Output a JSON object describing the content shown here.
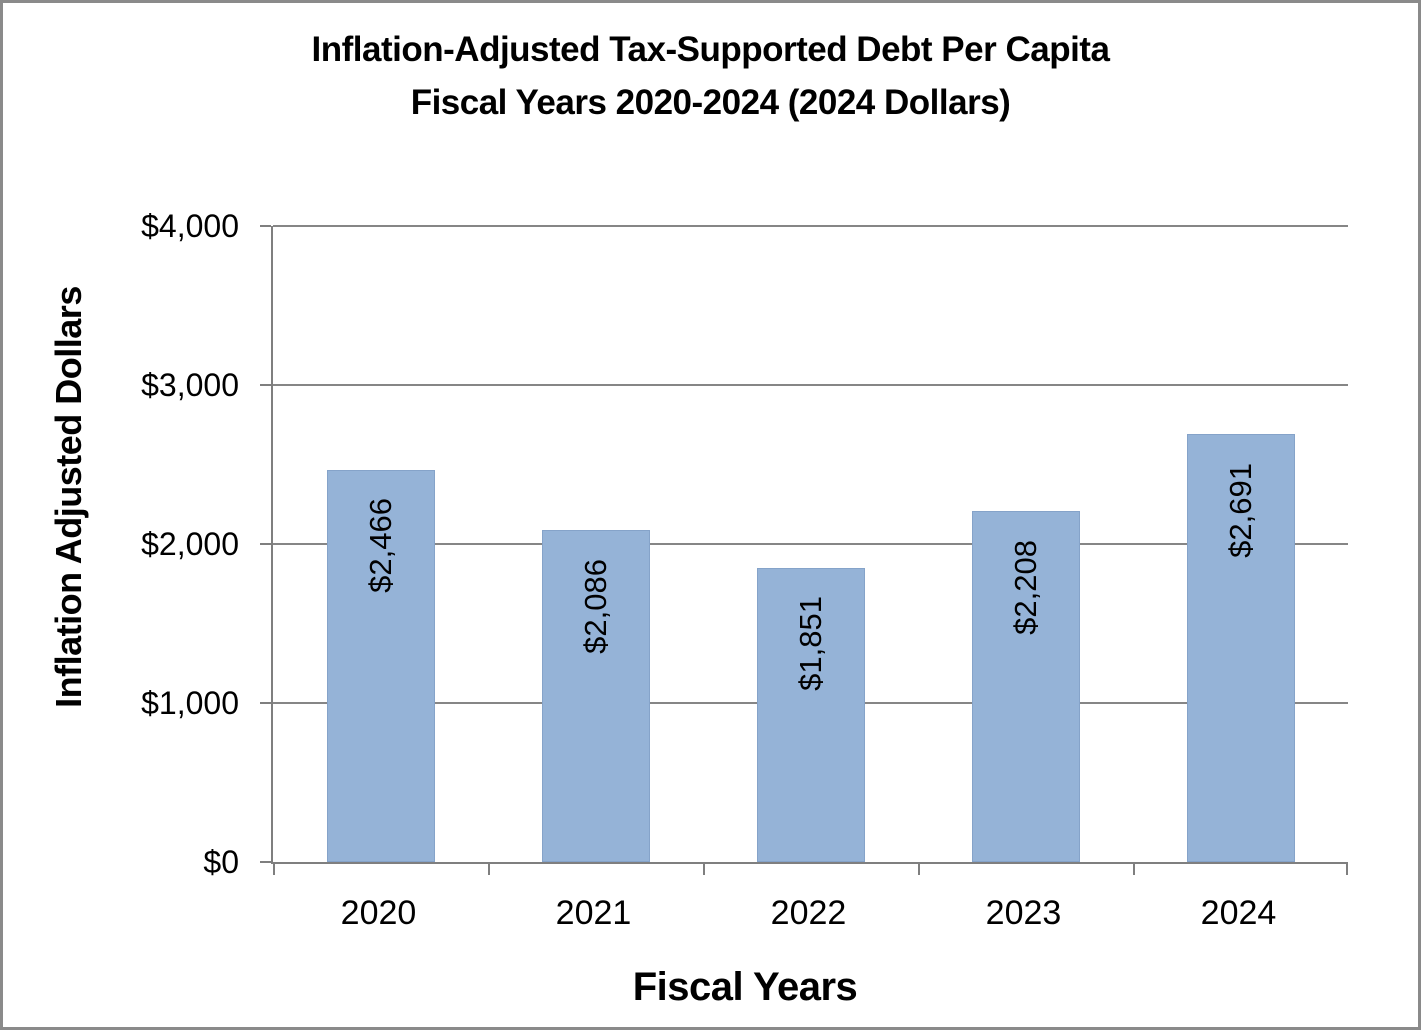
{
  "window": {
    "background": "#FFFFFF",
    "frame_border_color": "#8A8A8A"
  },
  "chart_data": {
    "type": "bar",
    "title_lines": [
      "Inflation-Adjusted Tax-Supported Debt Per Capita",
      "Fiscal Years 2020-2024 (2024 Dollars)"
    ],
    "xlabel": "Fiscal Years",
    "ylabel": "Inflation Adjusted Dollars",
    "categories": [
      "2020",
      "2021",
      "2022",
      "2023",
      "2024"
    ],
    "values": [
      2466,
      2086,
      1851,
      2208,
      2691
    ],
    "data_labels": [
      "$2,466",
      "$2,086",
      "$1,851",
      "$2,208",
      "$2,691"
    ],
    "data_label_rotation_degrees": -90,
    "data_label_position": "inside-end",
    "ylim": [
      0,
      4000
    ],
    "yticks": [
      0,
      1000,
      2000,
      3000,
      4000
    ],
    "ytick_labels": [
      "$0",
      "$1,000",
      "$2,000",
      "$3,000",
      "$4,000"
    ],
    "grid": "horizontal",
    "legend": "none",
    "colors": {
      "bar_fill": "#95B3D7",
      "bar_border": "#85A3C9",
      "axis": "#7F7F7F",
      "gridline": "#868686",
      "text": "#000000"
    }
  }
}
